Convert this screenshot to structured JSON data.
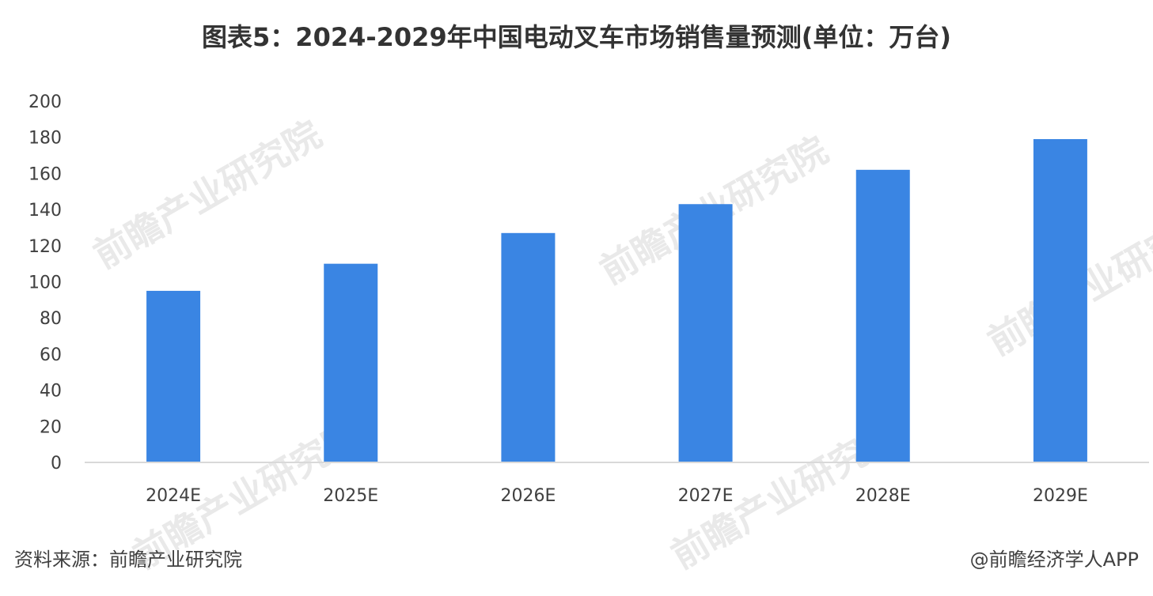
{
  "page": {
    "title": "图表5：2024-2029年中国电动叉车市场销售量预测(单位：万台)",
    "source": "资料来源：前瞻产业研究院",
    "credit": "@前瞻经济学人APP",
    "watermark": "前瞻产业研究院"
  },
  "colors": {
    "bar": "#3a85e3",
    "axis_line": "#d9d9d9",
    "tick_text": "#404040",
    "watermark": "#e9e9e9"
  },
  "chart_data": {
    "type": "bar",
    "title": "图表5：2024-2029年中国电动叉车市场销售量预测(单位：万台)",
    "categories": [
      "2024E",
      "2025E",
      "2026E",
      "2027E",
      "2028E",
      "2029E"
    ],
    "values": [
      95,
      110,
      127,
      143,
      162,
      179
    ],
    "ylim": [
      0,
      200
    ],
    "yticks": [
      0,
      20,
      40,
      60,
      80,
      100,
      120,
      140,
      160,
      180,
      200
    ],
    "grid": false,
    "legend": "none"
  }
}
